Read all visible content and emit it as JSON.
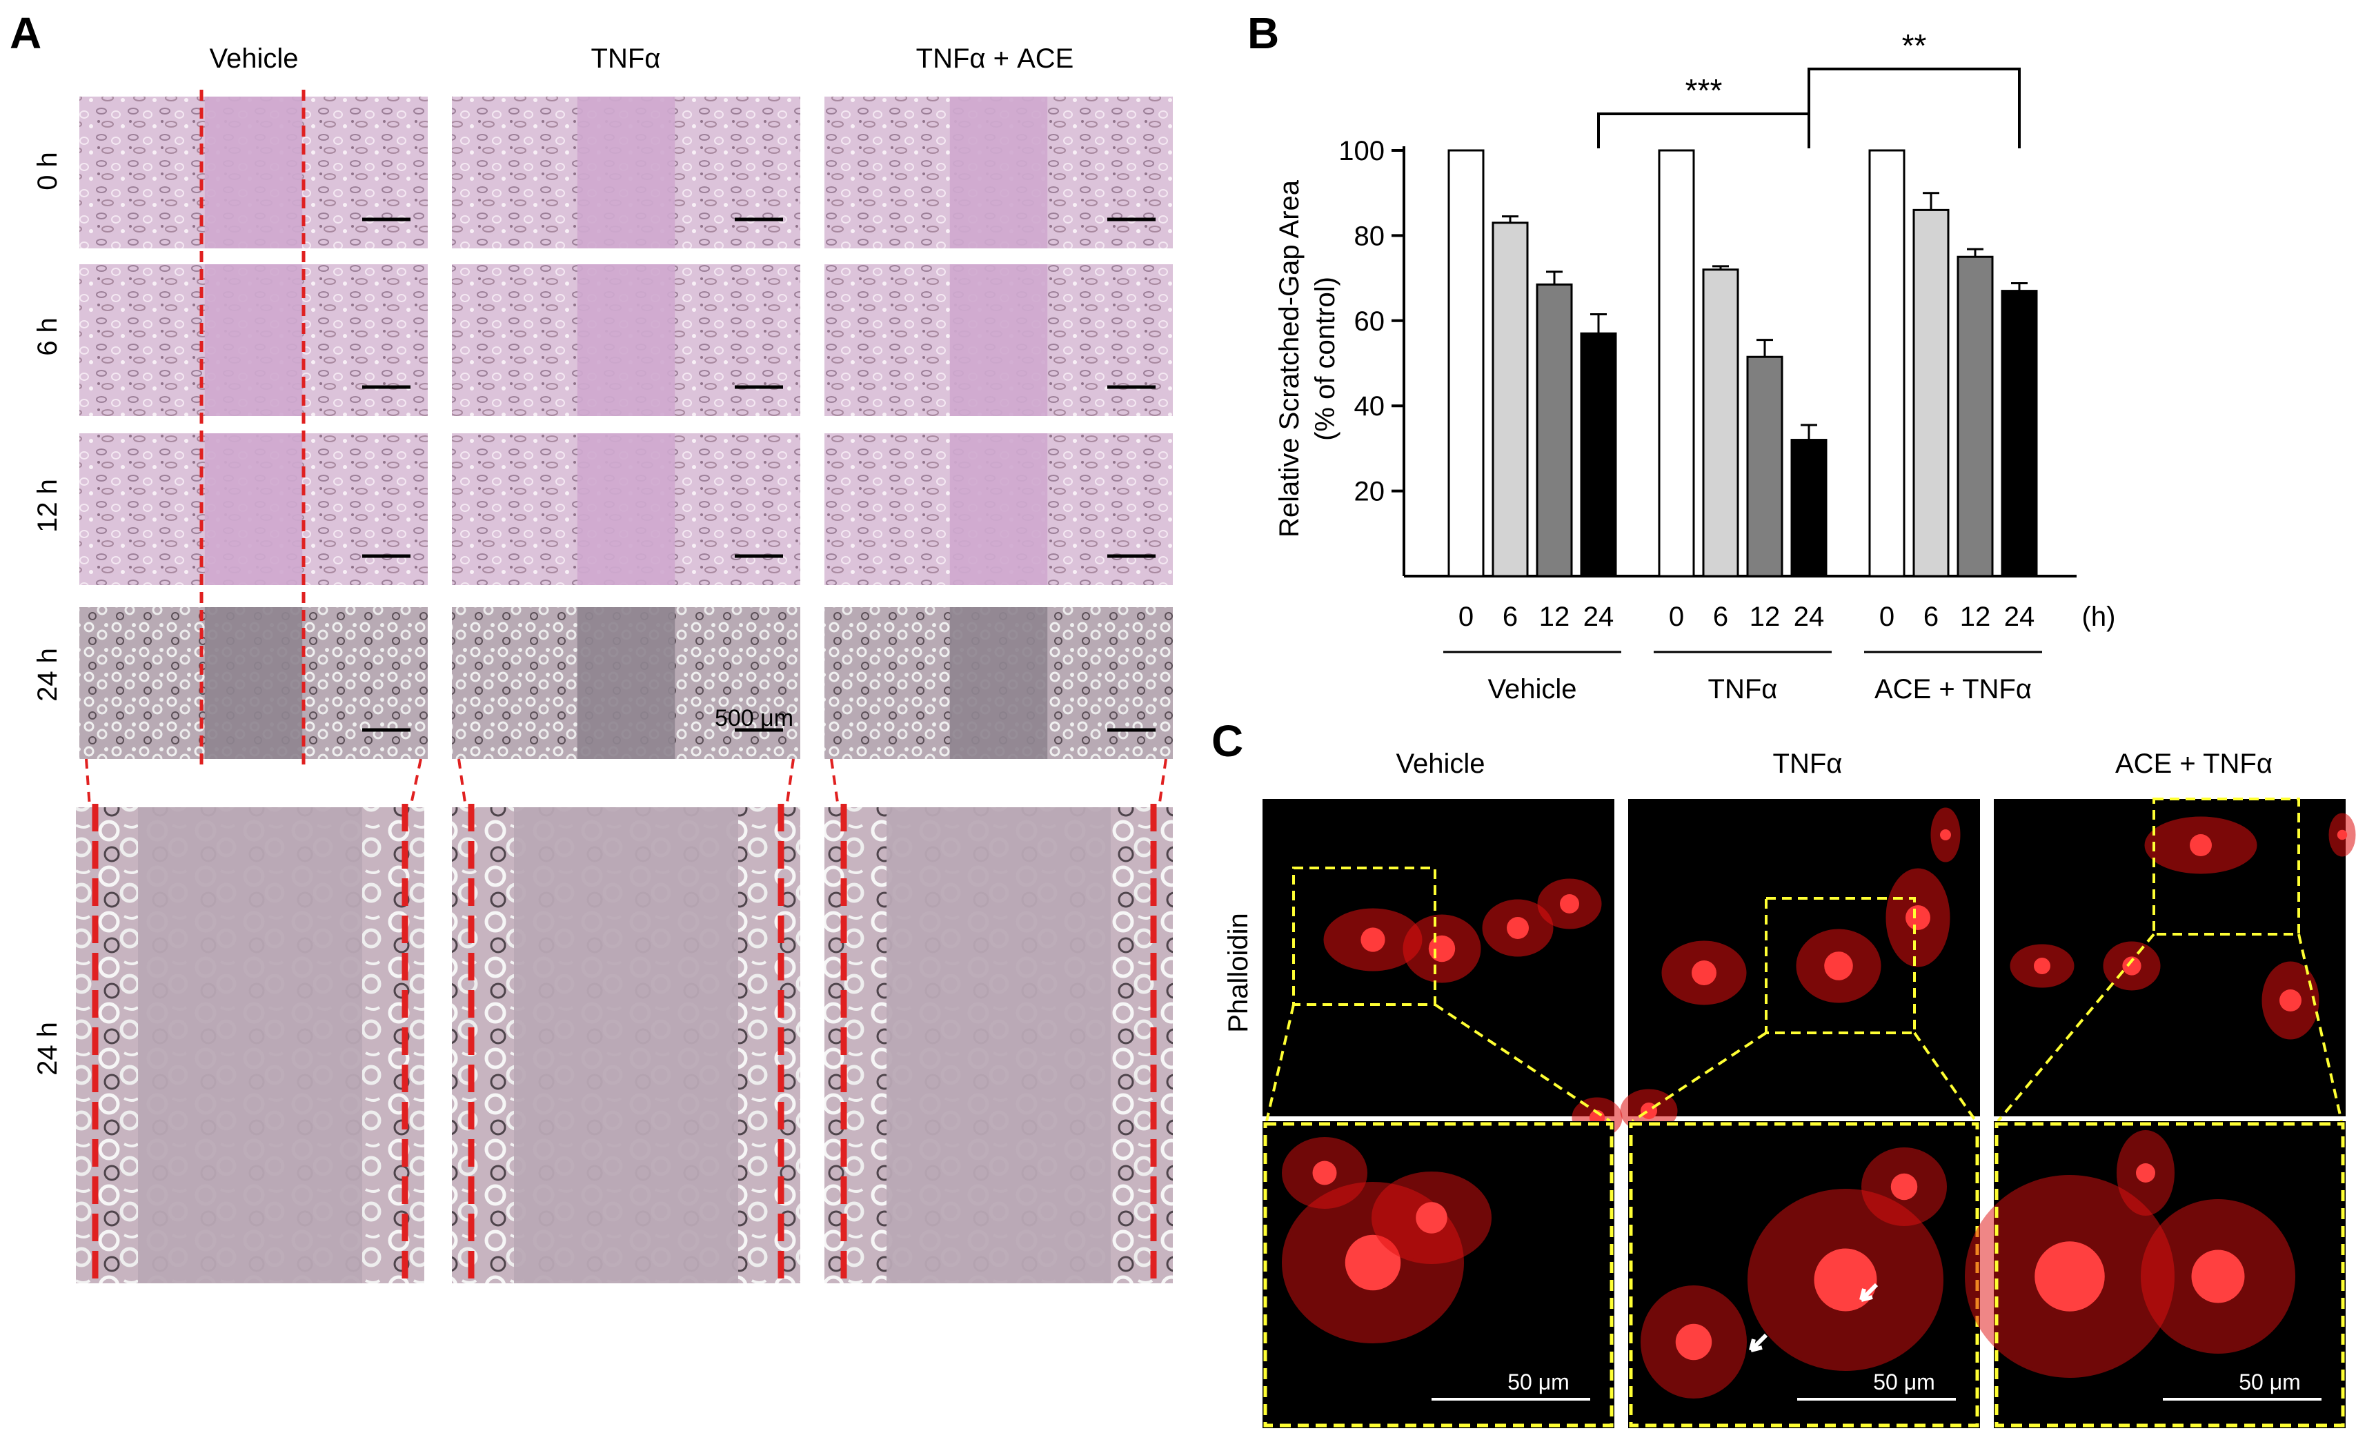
{
  "panels": {
    "a": "A",
    "b": "B",
    "c": "C"
  },
  "panel_a": {
    "columns": [
      "Vehicle",
      "TNFα",
      "TNFα + ACE"
    ],
    "rows": [
      "0 h",
      "6 h",
      "12 h",
      "24 h"
    ],
    "zoom_row_label": "24 h",
    "scale_bar_label": "500 μm",
    "colors": {
      "tissue": "#d9bfd7",
      "tissue_late": "#c2b2bc",
      "gap_line": "#e02020"
    }
  },
  "panel_c": {
    "columns": [
      "Vehicle",
      "TNFα",
      "ACE + TNFα"
    ],
    "row_label": "Phalloidin",
    "scale_bar_label": "50 μm",
    "colors": {
      "background": "#000000",
      "stain": "#e01010",
      "inset_box": "#ffff33"
    }
  },
  "chart_data": {
    "type": "bar",
    "ylabel_line1": "Relative Scratched-Gap Area",
    "ylabel_line2": "(% of control)",
    "x_unit": "(h)",
    "ylim": [
      0,
      100
    ],
    "yticks": [
      20,
      40,
      60,
      80,
      100
    ],
    "groups": [
      {
        "name": "Vehicle",
        "categories": [
          "0",
          "6",
          "12",
          "24"
        ],
        "values": [
          100,
          83,
          68.5,
          57
        ],
        "errors": [
          0,
          1.5,
          3,
          4.5
        ]
      },
      {
        "name": "TNFα",
        "categories": [
          "0",
          "6",
          "12",
          "24"
        ],
        "values": [
          100,
          72,
          51.5,
          32
        ],
        "errors": [
          0,
          0.8,
          4,
          3.5
        ]
      },
      {
        "name": "ACE + TNFα",
        "categories": [
          "0",
          "6",
          "12",
          "24"
        ],
        "values": [
          100,
          86,
          75,
          67
        ],
        "errors": [
          0,
          4,
          1.8,
          1.8
        ]
      }
    ],
    "bar_colors": {
      "0": "#ffffff",
      "6": "#d3d3d3",
      "12": "#7f7f7f",
      "24": "#000000"
    },
    "significance": [
      {
        "label": "***",
        "from_group": 0,
        "to_group": 1
      },
      {
        "label": "**",
        "from_group": 1,
        "to_group": 2
      }
    ]
  }
}
